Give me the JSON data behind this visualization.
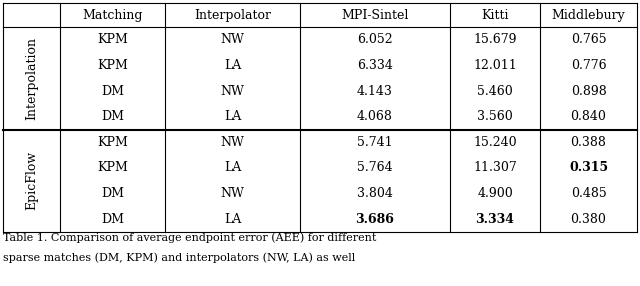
{
  "headers": [
    "Matching",
    "Interpolator",
    "MPI-Sintel",
    "Kitti",
    "Middlebury"
  ],
  "row_group1_label": "Interpolation",
  "row_group2_label": "EpicFlow",
  "rows": [
    [
      "KPM",
      "NW",
      "6.052",
      "15.679",
      "0.765",
      false,
      false,
      false
    ],
    [
      "KPM",
      "LA",
      "6.334",
      "12.011",
      "0.776",
      false,
      false,
      false
    ],
    [
      "DM",
      "NW",
      "4.143",
      "5.460",
      "0.898",
      false,
      false,
      false
    ],
    [
      "DM",
      "LA",
      "4.068",
      "3.560",
      "0.840",
      false,
      false,
      false
    ],
    [
      "KPM",
      "NW",
      "5.741",
      "15.240",
      "0.388",
      false,
      false,
      false
    ],
    [
      "KPM",
      "LA",
      "5.764",
      "11.307",
      "0.315",
      false,
      false,
      true
    ],
    [
      "DM",
      "NW",
      "3.804",
      "4.900",
      "0.485",
      false,
      false,
      false
    ],
    [
      "DM",
      "LA",
      "3.686",
      "3.334",
      "0.380",
      true,
      true,
      false
    ]
  ],
  "caption_line1": "Table 1. Comparison of average endpoint error (AEE) for different",
  "caption_line2": "sparse matches (DM, KPM) and interpolators (NW, LA) as well",
  "bg_color": "#ffffff",
  "line_color": "#000000",
  "text_color": "#000000",
  "font_size": 9.0,
  "caption_font_size": 8.0
}
